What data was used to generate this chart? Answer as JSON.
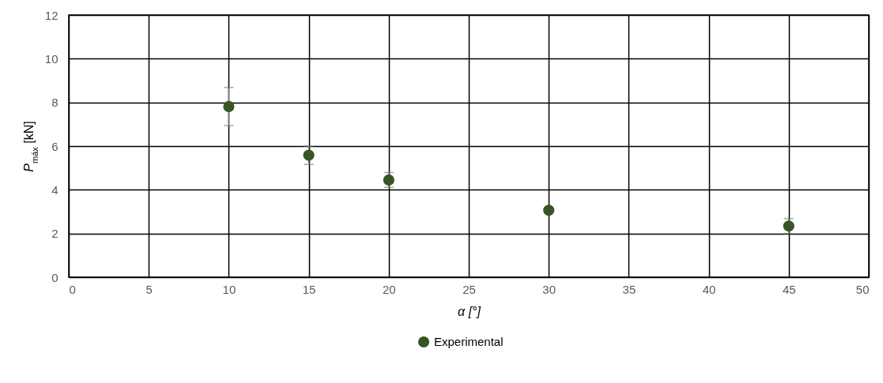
{
  "chart_data": {
    "type": "scatter",
    "xlabel": "α [°]",
    "ylabel": "P$_{máx}$ [kN]",
    "x": [
      10,
      15,
      20,
      30,
      45
    ],
    "series": [
      {
        "name": "Experimental",
        "color": "#375623",
        "values": [
          7.81,
          5.58,
          4.45,
          3.06,
          2.34
        ],
        "errors": [
          0.87,
          0.42,
          0.34,
          null,
          0.34
        ]
      }
    ],
    "xlim": [
      0,
      50
    ],
    "xticks": [
      0,
      5,
      10,
      15,
      20,
      25,
      30,
      35,
      40,
      45,
      50
    ],
    "ylim": [
      0,
      12
    ],
    "yticks": [
      0,
      2,
      4,
      6,
      8,
      10,
      12
    ],
    "grid": true,
    "legend": "bottom",
    "marker": "circle"
  }
}
